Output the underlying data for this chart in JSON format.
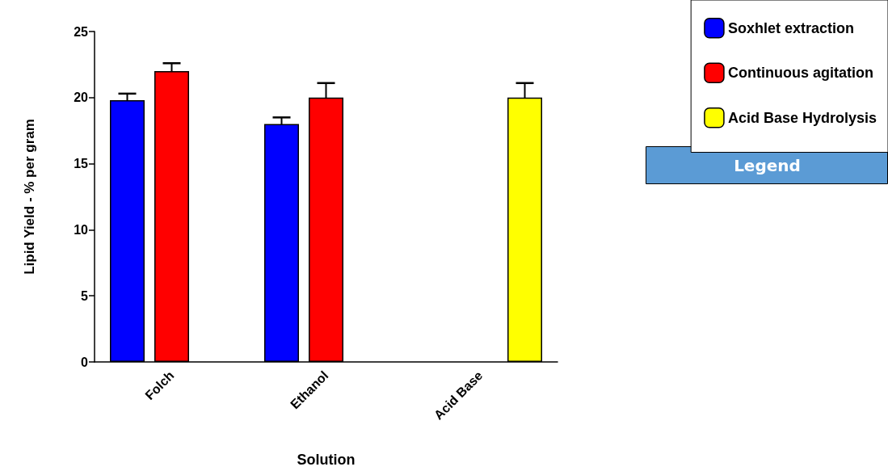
{
  "chart_data": {
    "type": "bar",
    "xlabel": "Solution",
    "ylabel": "Lipid Yield - % per gram",
    "legend_title": "Legend",
    "categories": [
      "Folch",
      "Ethanol",
      "Acid Base"
    ],
    "series": [
      {
        "name": "Soxhlet extraction",
        "color": "#0000ff",
        "values": [
          19.8,
          18.0,
          null
        ],
        "errors": [
          0.5,
          0.5,
          null
        ]
      },
      {
        "name": "Continuous agitation",
        "color": "#ff0000",
        "values": [
          22.0,
          20.0,
          null
        ],
        "errors": [
          0.6,
          1.1,
          null
        ]
      },
      {
        "name": "Acid Base Hydrolysis",
        "color": "#ffff00",
        "values": [
          null,
          null,
          20.0
        ],
        "errors": [
          null,
          null,
          1.1
        ]
      }
    ],
    "ylim": [
      0,
      25
    ],
    "yticks": [
      0,
      5,
      10,
      15,
      20,
      25
    ],
    "grid": false,
    "legend": "top right"
  }
}
